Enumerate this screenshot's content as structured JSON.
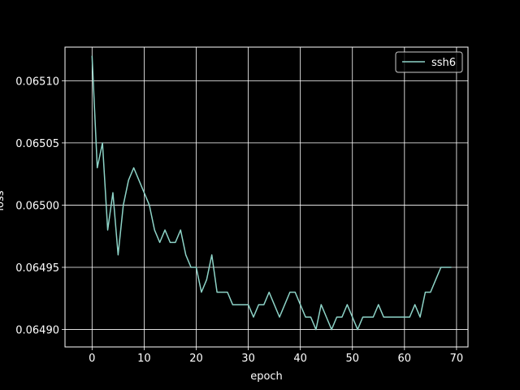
{
  "chart_data": {
    "type": "line",
    "xlabel": "epoch",
    "ylabel": "loss",
    "xlim": [
      -5.2,
      72.2
    ],
    "ylim": [
      0.064886,
      0.065127
    ],
    "xticks": [
      0,
      10,
      20,
      30,
      40,
      50,
      60,
      70
    ],
    "xtick_labels": [
      "0",
      "10",
      "20",
      "30",
      "40",
      "50",
      "60",
      "70"
    ],
    "yticks": [
      0.0649,
      0.06495,
      0.065,
      0.06505,
      0.0651
    ],
    "ytick_labels": [
      "0.06490",
      "0.06495",
      "0.06500",
      "0.06505",
      "0.06510"
    ],
    "grid": true,
    "legend_position": "top-right",
    "background": "#000000",
    "foreground": "#ffffff",
    "series": [
      {
        "name": "ssh6",
        "color": "#8dd3c7",
        "x": [
          0,
          1,
          2,
          3,
          4,
          5,
          6,
          7,
          8,
          9,
          10,
          11,
          12,
          13,
          14,
          15,
          16,
          17,
          18,
          19,
          20,
          21,
          22,
          23,
          24,
          25,
          26,
          27,
          28,
          29,
          30,
          31,
          32,
          33,
          34,
          35,
          36,
          37,
          38,
          39,
          40,
          41,
          42,
          43,
          44,
          45,
          46,
          47,
          48,
          49,
          50,
          51,
          52,
          53,
          54,
          55,
          56,
          57,
          58,
          59,
          60,
          61,
          62,
          63,
          64,
          65,
          66,
          67,
          68,
          69
        ],
        "values": [
          0.06512,
          0.06503,
          0.06505,
          0.06498,
          0.06501,
          0.06496,
          0.065,
          0.06502,
          0.06503,
          0.06502,
          0.06501,
          0.065,
          0.06498,
          0.06497,
          0.06498,
          0.06497,
          0.06497,
          0.06498,
          0.06496,
          0.06495,
          0.06495,
          0.06493,
          0.06494,
          0.06496,
          0.06493,
          0.06493,
          0.06493,
          0.06492,
          0.06492,
          0.06492,
          0.06492,
          0.06491,
          0.06492,
          0.06492,
          0.06493,
          0.06492,
          0.06491,
          0.06492,
          0.06493,
          0.06493,
          0.06492,
          0.06491,
          0.06491,
          0.0649,
          0.06492,
          0.06491,
          0.0649,
          0.06491,
          0.06491,
          0.06492,
          0.06491,
          0.0649,
          0.06491,
          0.06491,
          0.06491,
          0.06492,
          0.06491,
          0.06491,
          0.06491,
          0.06491,
          0.06491,
          0.06491,
          0.06492,
          0.06491,
          0.06493,
          0.06493,
          0.06494,
          0.06495,
          0.06495,
          0.06495
        ]
      }
    ]
  }
}
